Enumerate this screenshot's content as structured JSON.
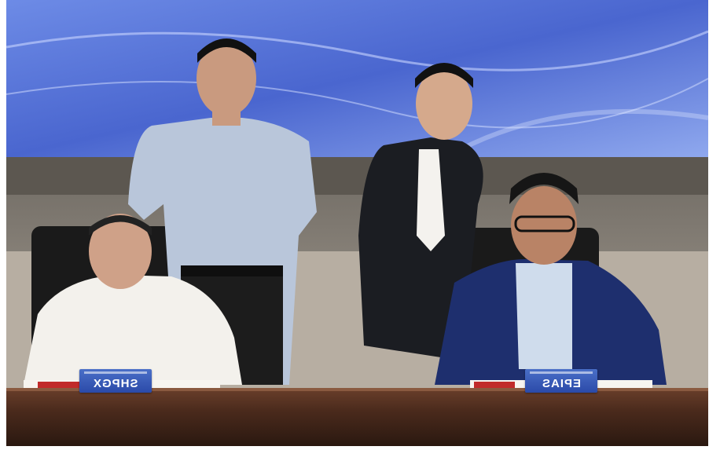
{
  "photo": {
    "left_nameplate": "SHPGX",
    "right_nameplate": "EPIAS",
    "nameplates_mirrored": true,
    "colors": {
      "screen_blue": "#4f6fd6",
      "wall": "#b7aea2",
      "table": "#4a2a1c",
      "nameplate": "#2f55b8"
    }
  }
}
